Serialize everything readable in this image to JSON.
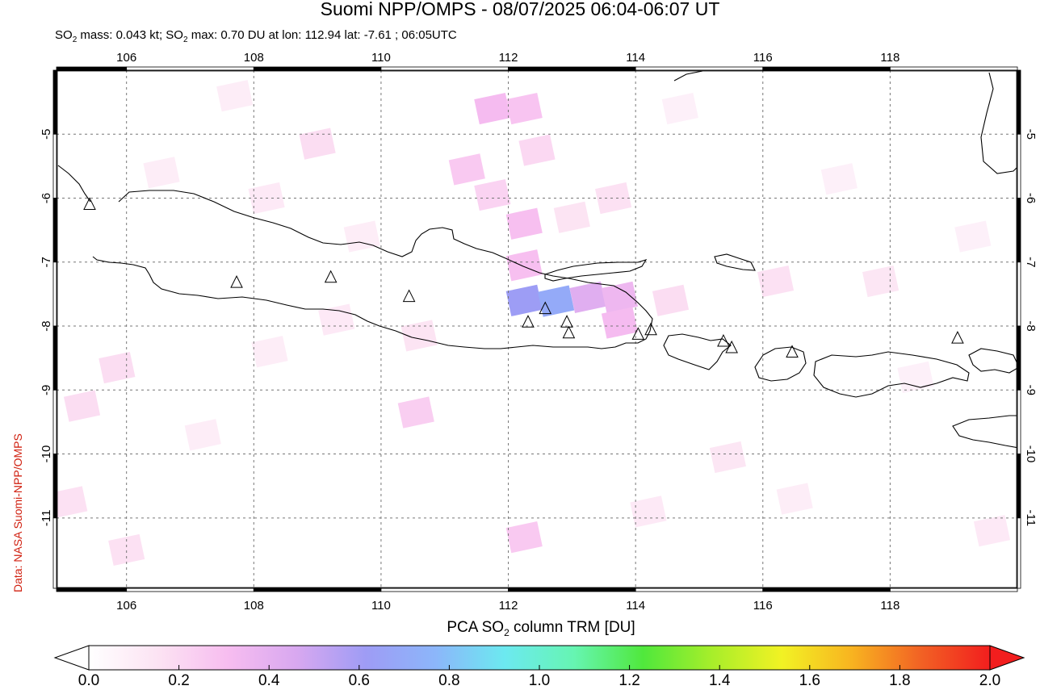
{
  "title": "Suomi NPP/OMPS - 08/07/2025 06:04-06:07 UT",
  "subtitle": {
    "mass_label": "SO",
    "mass_sub": "2",
    "mass_text": " mass: 0.043 kt; SO",
    "max_sub": "2",
    "max_text": " max: 0.70 DU at lon: 112.94 lat: -7.61 ; 06:05UTC"
  },
  "credit": "Data: NASA Suomi-NPP/OMPS",
  "map": {
    "lon_range": [
      104.9,
      120.0
    ],
    "lat_range": [
      -12.1,
      -4.0
    ],
    "lon_ticks": [
      "106",
      "108",
      "110",
      "112",
      "114",
      "116",
      "118"
    ],
    "lat_ticks": [
      "-5",
      "-6",
      "-7",
      "-8",
      "-9",
      "-10",
      "-11"
    ],
    "grid": true,
    "volcanoes": [
      {
        "lon": 105.42,
        "lat": -6.1
      },
      {
        "lon": 107.73,
        "lat": -7.32
      },
      {
        "lon": 109.21,
        "lat": -7.24
      },
      {
        "lon": 110.44,
        "lat": -7.54
      },
      {
        "lon": 112.31,
        "lat": -7.94
      },
      {
        "lon": 112.58,
        "lat": -7.73
      },
      {
        "lon": 112.92,
        "lat": -7.94
      },
      {
        "lon": 112.95,
        "lat": -8.11
      },
      {
        "lon": 114.04,
        "lat": -8.13
      },
      {
        "lon": 114.24,
        "lat": -8.06
      },
      {
        "lon": 115.38,
        "lat": -8.24
      },
      {
        "lon": 115.51,
        "lat": -8.34
      },
      {
        "lon": 116.46,
        "lat": -8.41
      },
      {
        "lon": 119.06,
        "lat": -8.19
      }
    ],
    "so2_cells": [
      {
        "lon": 112.25,
        "lat": -7.6,
        "v": 0.62
      },
      {
        "lon": 112.75,
        "lat": -7.61,
        "v": 0.7
      },
      {
        "lon": 113.25,
        "lat": -7.55,
        "v": 0.42
      },
      {
        "lon": 113.75,
        "lat": -7.55,
        "v": 0.35
      },
      {
        "lon": 113.75,
        "lat": -7.95,
        "v": 0.32
      },
      {
        "lon": 112.25,
        "lat": -7.05,
        "v": 0.3
      },
      {
        "lon": 112.25,
        "lat": -6.4,
        "v": 0.3
      },
      {
        "lon": 111.75,
        "lat": -4.6,
        "v": 0.32
      },
      {
        "lon": 112.25,
        "lat": -4.6,
        "v": 0.28
      },
      {
        "lon": 111.35,
        "lat": -5.55,
        "v": 0.26
      },
      {
        "lon": 111.75,
        "lat": -5.95,
        "v": 0.22
      },
      {
        "lon": 112.45,
        "lat": -5.25,
        "v": 0.2
      },
      {
        "lon": 109.0,
        "lat": -5.15,
        "v": 0.18
      },
      {
        "lon": 110.55,
        "lat": -9.35,
        "v": 0.24
      },
      {
        "lon": 112.25,
        "lat": -11.3,
        "v": 0.26
      },
      {
        "lon": 105.3,
        "lat": -9.25,
        "v": 0.18
      },
      {
        "lon": 105.85,
        "lat": -8.65,
        "v": 0.18
      },
      {
        "lon": 106.0,
        "lat": -11.5,
        "v": 0.16
      },
      {
        "lon": 105.1,
        "lat": -10.75,
        "v": 0.16
      },
      {
        "lon": 115.45,
        "lat": -10.05,
        "v": 0.14
      },
      {
        "lon": 116.2,
        "lat": -7.3,
        "v": 0.16
      },
      {
        "lon": 117.85,
        "lat": -7.3,
        "v": 0.14
      },
      {
        "lon": 113.65,
        "lat": -6.0,
        "v": 0.16
      },
      {
        "lon": 113.0,
        "lat": -6.3,
        "v": 0.15
      },
      {
        "lon": 110.6,
        "lat": -8.15,
        "v": 0.15
      },
      {
        "lon": 114.55,
        "lat": -7.6,
        "v": 0.18
      },
      {
        "lon": 119.6,
        "lat": -11.2,
        "v": 0.12
      },
      {
        "lon": 107.7,
        "lat": -4.4,
        "v": 0.1
      },
      {
        "lon": 106.55,
        "lat": -5.6,
        "v": 0.1
      },
      {
        "lon": 108.2,
        "lat": -6.0,
        "v": 0.12
      },
      {
        "lon": 109.7,
        "lat": -6.6,
        "v": 0.1
      },
      {
        "lon": 109.3,
        "lat": -7.9,
        "v": 0.12
      },
      {
        "lon": 108.25,
        "lat": -8.4,
        "v": 0.1
      },
      {
        "lon": 107.2,
        "lat": -9.7,
        "v": 0.1
      },
      {
        "lon": 114.2,
        "lat": -10.9,
        "v": 0.12
      },
      {
        "lon": 116.5,
        "lat": -10.7,
        "v": 0.1
      },
      {
        "lon": 118.4,
        "lat": -8.8,
        "v": 0.08
      },
      {
        "lon": 114.7,
        "lat": -4.6,
        "v": 0.08
      },
      {
        "lon": 117.2,
        "lat": -5.7,
        "v": 0.08
      },
      {
        "lon": 119.3,
        "lat": -6.6,
        "v": 0.08
      }
    ]
  },
  "colorbar": {
    "title_prefix": "PCA SO",
    "title_sub": "2",
    "title_suffix": " column TRM [DU]",
    "range": [
      0.0,
      2.0
    ],
    "ticks": [
      "0.0",
      "0.2",
      "0.4",
      "0.6",
      "0.8",
      "1.0",
      "1.2",
      "1.4",
      "1.6",
      "1.8",
      "2.0"
    ],
    "colors": [
      "#ffffff",
      "#fce3f3",
      "#f7bdf0",
      "#d8a8f0",
      "#9e9cf5",
      "#8cb6fa",
      "#6ce9f0",
      "#66f5b2",
      "#50e83c",
      "#a8ee2a",
      "#f2f224",
      "#f8b420",
      "#f26224",
      "#f21e1e"
    ]
  }
}
